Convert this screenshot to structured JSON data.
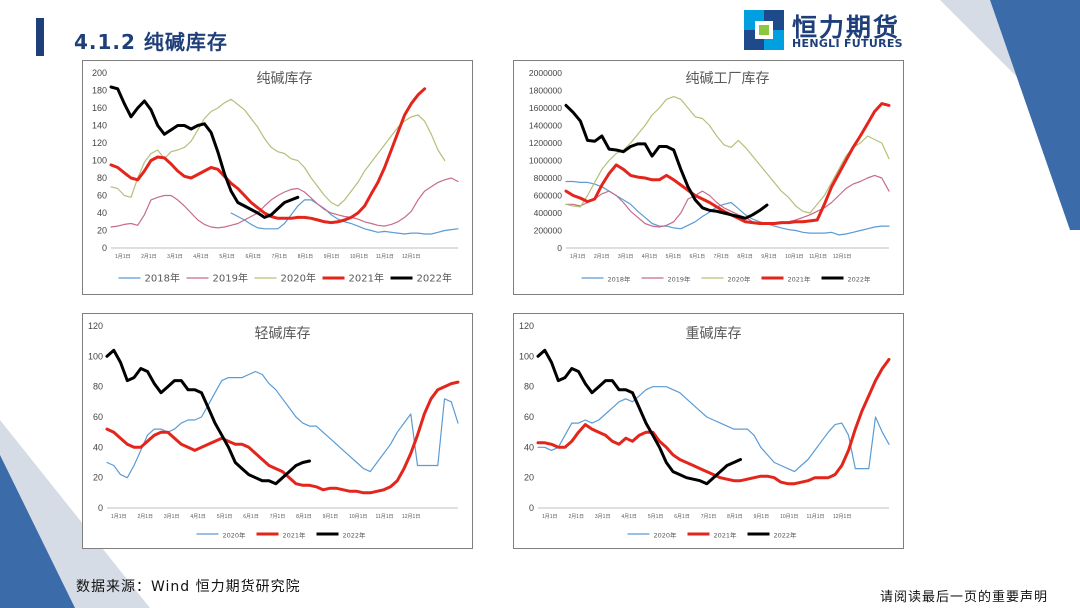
{
  "header": {
    "title": "4.1.2 纯碱库存"
  },
  "logo": {
    "cn": "恒力期货",
    "en": "HENGLI FUTURES"
  },
  "footer": {
    "source": "数据来源：Wind  恒力期货研究院",
    "disclaimer": "请阅读最后一页的重要声明"
  },
  "colors": {
    "brand": "#1f3f7a",
    "y2018": "#5b9bd5",
    "y2019": "#c76b8a",
    "y2020": "#b3c07a",
    "y2021": "#e3251b",
    "y2022": "#000000"
  },
  "chart_data": [
    {
      "type": "line",
      "title": "纯碱库存",
      "ylim": [
        0,
        200
      ],
      "yticks": [
        "0",
        "20",
        "40",
        "60",
        "80",
        "100",
        "120",
        "140",
        "160",
        "180",
        "200"
      ],
      "xticks": [
        "1月1日",
        "2月1日",
        "3月1日",
        "4月1日",
        "5月1日",
        "6月1日",
        "7月1日",
        "8月1日",
        "9月1日",
        "10月1日",
        "11月1日",
        "12月1日"
      ],
      "legend_position": "bottom",
      "series": [
        {
          "name": "2018年",
          "color": "#5b9bd5",
          "width": 1.2,
          "values": [
            null,
            null,
            null,
            null,
            null,
            null,
            null,
            null,
            null,
            null,
            null,
            null,
            null,
            null,
            null,
            null,
            null,
            null,
            40,
            36,
            32,
            27,
            23,
            22,
            22,
            22,
            28,
            38,
            48,
            55,
            55,
            50,
            45,
            38,
            33,
            30,
            28,
            25,
            22,
            20,
            18,
            19,
            18,
            17,
            16,
            17,
            17,
            16,
            16,
            18,
            20,
            21,
            22
          ]
        },
        {
          "name": "2019年",
          "color": "#c76b8a",
          "width": 1.2,
          "values": [
            24,
            25,
            27,
            28,
            26,
            38,
            55,
            58,
            60,
            60,
            55,
            48,
            40,
            32,
            27,
            24,
            23,
            24,
            26,
            28,
            32,
            36,
            40,
            48,
            55,
            60,
            64,
            67,
            68,
            64,
            57,
            50,
            44,
            40,
            38,
            36,
            35,
            33,
            30,
            28,
            26,
            25,
            27,
            30,
            35,
            42,
            55,
            65,
            70,
            75,
            78,
            80,
            76
          ]
        },
        {
          "name": "2020年",
          "color": "#b3c07a",
          "width": 1.2,
          "values": [
            70,
            68,
            60,
            58,
            80,
            98,
            108,
            112,
            102,
            110,
            112,
            115,
            122,
            135,
            148,
            156,
            160,
            166,
            170,
            164,
            158,
            148,
            138,
            125,
            115,
            110,
            108,
            102,
            100,
            92,
            80,
            70,
            60,
            52,
            48,
            55,
            65,
            75,
            88,
            98,
            108,
            118,
            128,
            138,
            145,
            150,
            152,
            145,
            130,
            112,
            100,
            null,
            null
          ]
        },
        {
          "name": "2021年",
          "color": "#e3251b",
          "width": 3,
          "values": [
            95,
            92,
            86,
            80,
            78,
            88,
            100,
            104,
            103,
            96,
            88,
            82,
            80,
            84,
            88,
            92,
            90,
            82,
            74,
            68,
            60,
            52,
            46,
            40,
            36,
            34,
            34,
            34,
            35,
            35,
            34,
            32,
            30,
            29,
            30,
            32,
            35,
            40,
            48,
            62,
            75,
            92,
            112,
            132,
            152,
            165,
            175,
            182,
            null,
            null,
            null,
            null,
            null
          ]
        },
        {
          "name": "2022年",
          "color": "#000000",
          "width": 3,
          "values": [
            184,
            182,
            165,
            150,
            160,
            168,
            158,
            140,
            130,
            135,
            140,
            140,
            136,
            140,
            142,
            132,
            110,
            85,
            65,
            52,
            48,
            44,
            40,
            35,
            38,
            45,
            52,
            55,
            58,
            null,
            null,
            null,
            null,
            null,
            null,
            null,
            null,
            null,
            null,
            null,
            null,
            null,
            null,
            null,
            null,
            null,
            null,
            null,
            null,
            null,
            null,
            null,
            null
          ]
        }
      ]
    },
    {
      "type": "line",
      "title": "纯碱工厂库存",
      "ylim": [
        0,
        2000000
      ],
      "yticks": [
        "0",
        "200000",
        "400000",
        "600000",
        "800000",
        "1000000",
        "1200000",
        "1400000",
        "1600000",
        "1800000",
        "2000000"
      ],
      "xticks": [
        "1月1日",
        "2月1日",
        "3月1日",
        "4月1日",
        "5月1日",
        "6月1日",
        "7月1日",
        "8月1日",
        "9月1日",
        "10月1日",
        "11月1日",
        "12月1日"
      ],
      "legend_position": "bottom",
      "series": [
        {
          "name": "2018年",
          "color": "#5b9bd5",
          "width": 1.2,
          "values": [
            760000,
            760000,
            750000,
            750000,
            730000,
            700000,
            650000,
            600000,
            550000,
            500000,
            420000,
            350000,
            280000,
            250000,
            250000,
            230000,
            220000,
            260000,
            300000,
            360000,
            410000,
            470000,
            500000,
            520000,
            450000,
            380000,
            330000,
            300000,
            280000,
            250000,
            230000,
            210000,
            200000,
            180000,
            170000,
            170000,
            170000,
            180000,
            150000,
            160000,
            180000,
            200000,
            220000,
            240000,
            250000,
            250000
          ]
        },
        {
          "name": "2019年",
          "color": "#c76b8a",
          "width": 1.2,
          "values": [
            500000,
            500000,
            480000,
            520000,
            560000,
            620000,
            650000,
            600000,
            520000,
            420000,
            350000,
            280000,
            250000,
            240000,
            260000,
            300000,
            400000,
            560000,
            600000,
            650000,
            600000,
            520000,
            460000,
            420000,
            380000,
            350000,
            300000,
            280000,
            270000,
            270000,
            280000,
            300000,
            320000,
            350000,
            380000,
            420000,
            460000,
            520000,
            600000,
            680000,
            730000,
            760000,
            800000,
            830000,
            800000,
            650000
          ]
        },
        {
          "name": "2020年",
          "color": "#b3c07a",
          "width": 1.2,
          "values": [
            500000,
            480000,
            470000,
            600000,
            750000,
            900000,
            1000000,
            1080000,
            1120000,
            1200000,
            1300000,
            1400000,
            1520000,
            1600000,
            1700000,
            1730000,
            1700000,
            1600000,
            1500000,
            1480000,
            1400000,
            1280000,
            1180000,
            1150000,
            1230000,
            1150000,
            1050000,
            950000,
            850000,
            750000,
            650000,
            580000,
            480000,
            420000,
            400000,
            500000,
            600000,
            750000,
            900000,
            1050000,
            1150000,
            1200000,
            1280000,
            1240000,
            1200000,
            1020000
          ]
        },
        {
          "name": "2021年",
          "color": "#e3251b",
          "width": 3,
          "values": [
            650000,
            600000,
            570000,
            530000,
            560000,
            720000,
            850000,
            950000,
            900000,
            830000,
            810000,
            800000,
            780000,
            780000,
            830000,
            780000,
            720000,
            660000,
            600000,
            560000,
            520000,
            470000,
            420000,
            380000,
            340000,
            300000,
            290000,
            280000,
            280000,
            280000,
            290000,
            290000,
            300000,
            300000,
            310000,
            320000,
            500000,
            700000,
            850000,
            1000000,
            1150000,
            1280000,
            1420000,
            1560000,
            1650000,
            1630000
          ]
        },
        {
          "name": "2022年",
          "color": "#000000",
          "width": 3,
          "values": [
            1630000,
            1550000,
            1450000,
            1230000,
            1220000,
            1280000,
            1130000,
            1120000,
            1100000,
            1160000,
            1190000,
            1190000,
            1050000,
            1160000,
            1160000,
            1120000,
            900000,
            700000,
            550000,
            460000,
            430000,
            420000,
            400000,
            380000,
            360000,
            340000,
            380000,
            430000,
            490000,
            null,
            null,
            null,
            null,
            null,
            null,
            null,
            null,
            null,
            null,
            null,
            null,
            null,
            null,
            null,
            null,
            null
          ]
        }
      ]
    },
    {
      "type": "line",
      "title": "轻碱库存",
      "ylim": [
        0,
        120
      ],
      "yticks": [
        "0",
        "20",
        "40",
        "60",
        "80",
        "100",
        "120"
      ],
      "xticks": [
        "1月1日",
        "2月1日",
        "3月1日",
        "4月1日",
        "5月1日",
        "6月1日",
        "7月1日",
        "8月1日",
        "9月1日",
        "10月1日",
        "11月1日",
        "12月1日"
      ],
      "legend_position": "bottom",
      "series": [
        {
          "name": "2020年",
          "color": "#5b9bd5",
          "width": 1.2,
          "values": [
            30,
            28,
            22,
            20,
            28,
            38,
            48,
            52,
            52,
            50,
            52,
            56,
            58,
            58,
            60,
            68,
            76,
            84,
            86,
            86,
            86,
            88,
            90,
            88,
            82,
            78,
            72,
            66,
            60,
            56,
            54,
            54,
            50,
            46,
            42,
            38,
            34,
            30,
            26,
            24,
            30,
            36,
            42,
            50,
            56,
            62,
            28,
            28,
            28,
            28,
            72,
            70,
            56
          ]
        },
        {
          "name": "2021年",
          "color": "#e3251b",
          "width": 3,
          "values": [
            52,
            50,
            46,
            42,
            40,
            40,
            44,
            48,
            50,
            50,
            46,
            42,
            40,
            38,
            40,
            42,
            44,
            46,
            44,
            42,
            42,
            40,
            36,
            32,
            28,
            26,
            24,
            20,
            16,
            15,
            15,
            14,
            12,
            13,
            13,
            12,
            11,
            11,
            10,
            10,
            11,
            12,
            14,
            18,
            26,
            36,
            48,
            62,
            72,
            78,
            80,
            82,
            83
          ]
        },
        {
          "name": "2022年",
          "color": "#000000",
          "width": 3,
          "values": [
            100,
            104,
            96,
            84,
            86,
            92,
            90,
            82,
            76,
            80,
            84,
            84,
            78,
            78,
            76,
            66,
            56,
            48,
            40,
            30,
            26,
            22,
            20,
            18,
            18,
            16,
            20,
            24,
            28,
            30,
            31,
            null,
            null,
            null,
            null,
            null,
            null,
            null,
            null,
            null,
            null,
            null,
            null,
            null,
            null,
            null,
            null,
            null,
            null,
            null,
            null,
            null,
            null
          ]
        }
      ]
    },
    {
      "type": "line",
      "title": "重碱库存",
      "ylim": [
        0,
        120
      ],
      "yticks": [
        "0",
        "20",
        "40",
        "60",
        "80",
        "100",
        "120"
      ],
      "xticks": [
        "1月1日",
        "2月1日",
        "3月1日",
        "4月1日",
        "5月1日",
        "6月1日",
        "7月1日",
        "8月1日",
        "9月1日",
        "10月1日",
        "11月1日",
        "12月1日"
      ],
      "legend_position": "bottom",
      "series": [
        {
          "name": "2020年",
          "color": "#5b9bd5",
          "width": 1.2,
          "values": [
            40,
            40,
            38,
            40,
            48,
            56,
            56,
            58,
            56,
            58,
            62,
            66,
            70,
            72,
            70,
            74,
            78,
            80,
            80,
            80,
            78,
            76,
            72,
            68,
            64,
            60,
            58,
            56,
            54,
            52,
            52,
            52,
            48,
            40,
            35,
            30,
            28,
            26,
            24,
            28,
            32,
            38,
            44,
            50,
            55,
            56,
            48,
            26,
            26,
            26,
            60,
            50,
            42
          ]
        },
        {
          "name": "2021年",
          "color": "#e3251b",
          "width": 3,
          "values": [
            43,
            43,
            42,
            40,
            40,
            44,
            50,
            55,
            52,
            50,
            48,
            44,
            42,
            46,
            44,
            48,
            50,
            50,
            44,
            40,
            35,
            32,
            30,
            28,
            26,
            24,
            22,
            20,
            19,
            18,
            18,
            19,
            20,
            21,
            21,
            20,
            17,
            16,
            16,
            17,
            18,
            20,
            20,
            20,
            22,
            28,
            38,
            52,
            64,
            74,
            84,
            92,
            98
          ]
        },
        {
          "name": "2022年",
          "color": "#000000",
          "width": 3,
          "values": [
            100,
            104,
            96,
            84,
            86,
            92,
            90,
            82,
            76,
            80,
            84,
            84,
            78,
            78,
            76,
            66,
            56,
            48,
            40,
            30,
            24,
            22,
            20,
            19,
            18,
            16,
            20,
            24,
            28,
            30,
            32,
            null,
            null,
            null,
            null,
            null,
            null,
            null,
            null,
            null,
            null,
            null,
            null,
            null,
            null,
            null,
            null,
            null,
            null,
            null,
            null,
            null,
            null
          ]
        }
      ]
    }
  ]
}
